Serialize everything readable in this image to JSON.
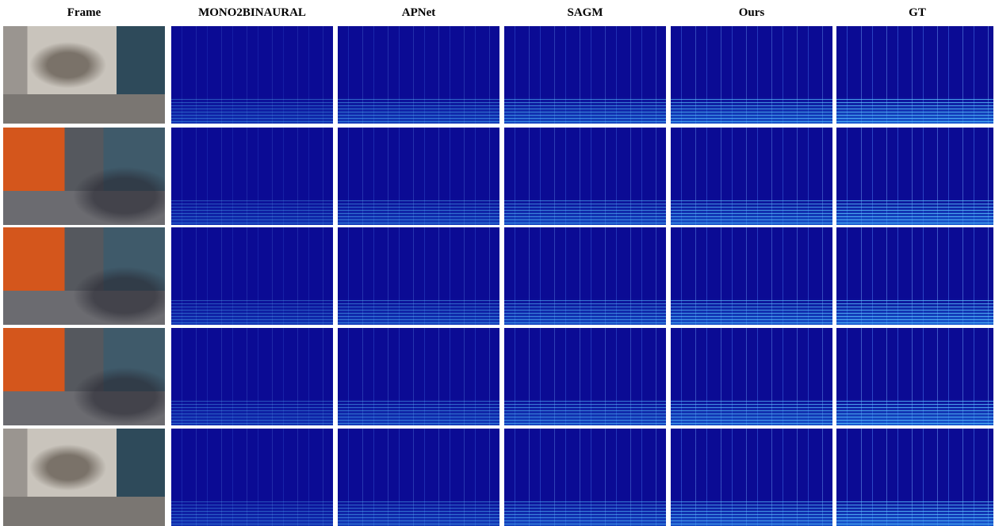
{
  "header": {
    "columns": [
      "Frame",
      "MONO2BINAURAL",
      "APNet",
      "SAGM",
      "Ours",
      "GT"
    ]
  }
}
